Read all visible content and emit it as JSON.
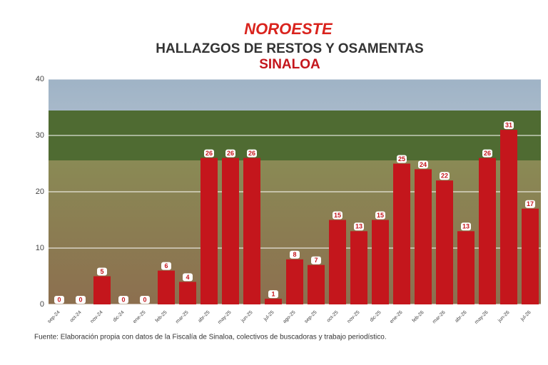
{
  "brand": "NOROESTE",
  "chart_data": {
    "type": "bar",
    "title": "HALLAZGOS DE RESTOS Y OSAMENTAS",
    "subtitle": "SINALOA",
    "categories": [
      "sep-24",
      "oct-24",
      "nov-24",
      "dic-24",
      "ene-25",
      "feb-25",
      "mar-25",
      "abr-25",
      "may-25",
      "jun-25",
      "jul-25",
      "ago-25",
      "sep-25",
      "oct-25",
      "nov-25",
      "dic-25",
      "ene-26",
      "feb-26",
      "mar-26",
      "abr-26",
      "may-26",
      "jun-26",
      "jul-26"
    ],
    "values": [
      0,
      0,
      5,
      0,
      0,
      6,
      4,
      26,
      26,
      26,
      1,
      8,
      7,
      15,
      13,
      15,
      25,
      24,
      22,
      13,
      26,
      31,
      17
    ],
    "color": "#c4161c",
    "ylim": [
      0,
      40
    ],
    "yticks": [
      0,
      10,
      20,
      30,
      40
    ],
    "grid": true,
    "source": "Fuente: Elaboración propia con datos de la Fiscalía de Sinaloa, colectivos de buscadoras y trabajo periodístico."
  }
}
